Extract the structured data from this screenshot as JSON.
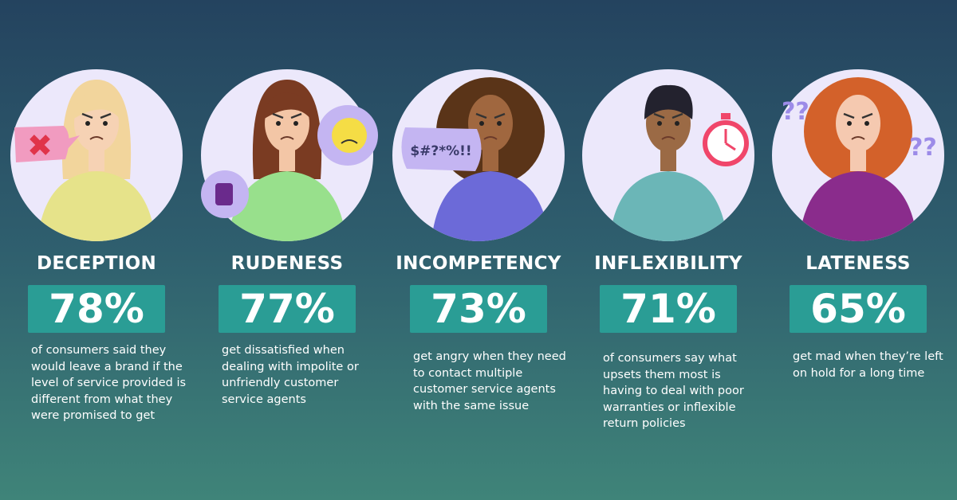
{
  "items": [
    {
      "title": "DECEPTION",
      "stat": "78%",
      "description": "of consumers said they would leave a brand if the level of service provided is different from what they were promised to get"
    },
    {
      "title": "RUDENESS",
      "stat": "77%",
      "description": "get dissatisfied when dealing with impolite or unfriendly customer service agents"
    },
    {
      "title": "INCOMPETENCY",
      "stat": "73%",
      "description": "get angry when they need to contact multiple customer service agents with the same issue"
    },
    {
      "title": "INFLEXIBILITY",
      "stat": "71%",
      "description": "of consumers say what upsets them most is having to deal with poor warranties or inflexible return policies"
    },
    {
      "title": "LATENESS",
      "stat": "65%",
      "description": "get mad when they’re left on hold for a long time"
    }
  ],
  "bubble_text": "$#?*%!!",
  "question_marks": "??"
}
